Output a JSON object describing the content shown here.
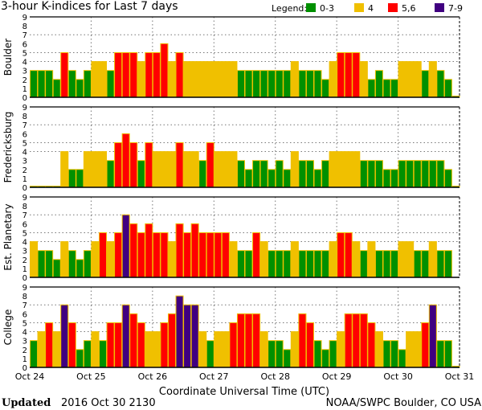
{
  "chart_data": {
    "type": "bar",
    "title": "3-hour K-indices for Last 7 days",
    "legend_label": "Legend:",
    "legend": [
      {
        "label": "0-3",
        "color": "#009000",
        "min": 0,
        "max": 3
      },
      {
        "label": "4",
        "color": "#f0c000",
        "min": 4,
        "max": 4
      },
      {
        "label": "5,6",
        "color": "#ff0000",
        "min": 5,
        "max": 6
      },
      {
        "label": "7-9",
        "color": "#400080",
        "min": 7,
        "max": 9
      }
    ],
    "legend_placement": "top-right",
    "xlabel": "Coordinate Universal Time (UTC)",
    "x_ticks": [
      "Oct 24",
      "Oct 25",
      "Oct 26",
      "Oct 27",
      "Oct 28",
      "Oct 29",
      "Oct 30",
      "Oct 31"
    ],
    "bars_per_day": 8,
    "ylim": [
      0,
      9
    ],
    "y_ticks": [
      "0",
      "1",
      "2",
      "3",
      "4",
      "5",
      "6",
      "7",
      "8",
      "9"
    ],
    "grid_levels": [
      4,
      5,
      7
    ],
    "panels": [
      {
        "name": "Boulder",
        "values": [
          3,
          3,
          3,
          2,
          5,
          3,
          2,
          3,
          4,
          4,
          3,
          5,
          5,
          5,
          4,
          5,
          5,
          6,
          4,
          5,
          4,
          4,
          4,
          4,
          4,
          4,
          4,
          3,
          3,
          3,
          3,
          3,
          3,
          3,
          4,
          3,
          3,
          3,
          2,
          4,
          5,
          5,
          5,
          4,
          2,
          3,
          2,
          2,
          4,
          4,
          4,
          3,
          4,
          3,
          2,
          0
        ]
      },
      {
        "name": "Fredericksburg",
        "values": [
          0,
          0,
          0,
          0,
          4,
          2,
          2,
          4,
          4,
          4,
          3,
          5,
          6,
          5,
          3,
          5,
          4,
          4,
          4,
          5,
          4,
          4,
          3,
          5,
          4,
          4,
          4,
          3,
          2,
          3,
          3,
          2,
          3,
          2,
          4,
          3,
          3,
          2,
          3,
          4,
          4,
          4,
          4,
          3,
          3,
          3,
          2,
          2,
          3,
          3,
          3,
          3,
          3,
          3,
          2,
          0
        ]
      },
      {
        "name": "Est. Planetary",
        "values": [
          4,
          3,
          3,
          2,
          4,
          3,
          2,
          3,
          4,
          5,
          4,
          5,
          7,
          6,
          5,
          6,
          5,
          5,
          4,
          6,
          5,
          6,
          5,
          5,
          5,
          5,
          4,
          3,
          3,
          5,
          4,
          3,
          3,
          3,
          4,
          3,
          3,
          3,
          3,
          4,
          5,
          5,
          4,
          3,
          4,
          3,
          3,
          3,
          4,
          4,
          3,
          3,
          4,
          3,
          3,
          null
        ]
      },
      {
        "name": "College",
        "values": [
          3,
          4,
          5,
          4,
          7,
          5,
          2,
          3,
          4,
          3,
          5,
          5,
          7,
          6,
          5,
          4,
          4,
          5,
          6,
          8,
          7,
          7,
          4,
          3,
          4,
          4,
          5,
          6,
          6,
          6,
          4,
          3,
          3,
          2,
          4,
          6,
          5,
          3,
          2,
          3,
          4,
          6,
          6,
          6,
          5,
          4,
          3,
          3,
          2,
          4,
          4,
          5,
          7,
          3,
          3,
          0
        ]
      }
    ]
  },
  "footer": {
    "updated_label": "Updated",
    "updated_value": "2016 Oct 30 2130",
    "source": "NOAA/SWPC Boulder, CO USA"
  }
}
